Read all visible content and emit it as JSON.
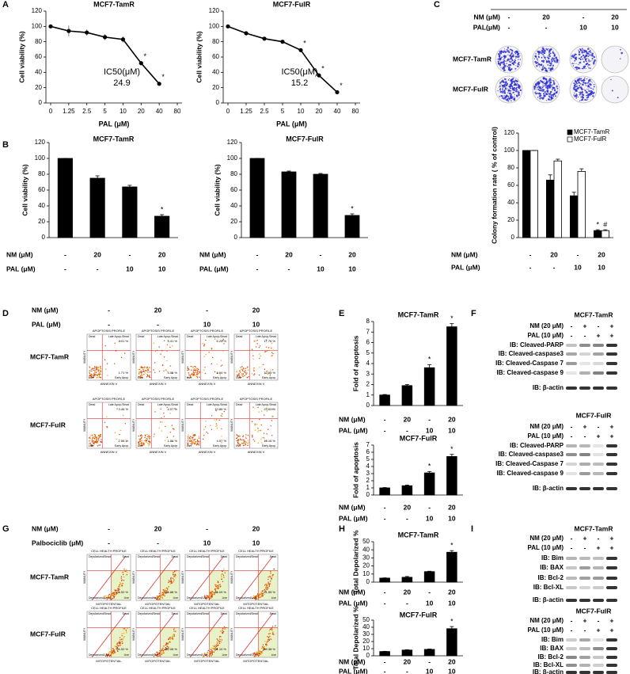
{
  "panels": [
    "A",
    "B",
    "C",
    "D",
    "E",
    "F",
    "G",
    "H",
    "I"
  ],
  "chart_data": [
    {
      "type": "line",
      "title": "MCF7-TamR",
      "xlabel": "PAL (μM)",
      "ylabel": "Cell viability (%)",
      "categories": [
        "0",
        "1.25",
        "2.5",
        "5",
        "10",
        "20",
        "40",
        "80"
      ],
      "values": [
        100,
        94,
        92,
        86,
        83,
        52,
        25,
        null
      ],
      "errors": [
        0,
        7,
        4,
        4,
        4,
        2,
        1,
        null
      ],
      "significance": [
        null,
        null,
        null,
        null,
        null,
        "*",
        "*",
        null
      ],
      "annotations": [
        "IC50(μM)",
        "24.9"
      ],
      "ylim": [
        0,
        120
      ],
      "yticks": [
        0,
        20,
        40,
        60,
        80,
        100,
        120
      ],
      "color": "#000000"
    },
    {
      "type": "line",
      "title": "MCF7-FulR",
      "xlabel": "PAL (μM)",
      "ylabel": "Cell viability (%)",
      "categories": [
        "0",
        "1.25",
        "2.5",
        "5",
        "10",
        "20",
        "40",
        "80"
      ],
      "values": [
        100,
        91,
        84,
        80,
        69,
        36,
        14,
        null
      ],
      "errors": [
        0,
        2,
        2,
        1,
        2,
        1,
        1,
        null
      ],
      "significance": [
        null,
        null,
        null,
        null,
        "*",
        "*",
        "*",
        null
      ],
      "annotations": [
        "IC50(μM)",
        "15.2"
      ],
      "ylim": [
        0,
        120
      ],
      "yticks": [
        0,
        20,
        40,
        60,
        80,
        100,
        120
      ],
      "color": "#000000"
    },
    {
      "type": "bar",
      "title": "MCF7-TamR",
      "ylabel": "Cell viability (%)",
      "values": [
        100,
        75,
        64,
        27
      ],
      "errors": [
        0,
        3,
        2,
        2
      ],
      "significance": [
        null,
        null,
        null,
        "*"
      ],
      "color": "#000000",
      "ylim": [
        0,
        120
      ],
      "yticks": [
        0,
        20,
        40,
        60,
        80,
        100,
        120
      ],
      "treatments": [
        {
          "label": "NM (μM)",
          "values": [
            "-",
            "20",
            "-",
            "20"
          ]
        },
        {
          "label": "PAL (μM)",
          "values": [
            "-",
            "-",
            "10",
            "10"
          ]
        }
      ]
    },
    {
      "type": "bar",
      "title": "MCF7-FulR",
      "ylabel": "Cell viability (%)",
      "values": [
        100,
        83,
        80,
        28
      ],
      "errors": [
        0,
        1,
        1,
        2
      ],
      "significance": [
        null,
        null,
        null,
        "*"
      ],
      "color": "#000000",
      "ylim": [
        0,
        120
      ],
      "yticks": [
        0,
        20,
        40,
        60,
        80,
        100,
        120
      ],
      "treatments": [
        {
          "label": "NM (μM)",
          "values": [
            "-",
            "20",
            "-",
            "20"
          ]
        },
        {
          "label": "PAL (μM)",
          "values": [
            "-",
            "-",
            "10",
            "10"
          ]
        }
      ]
    },
    {
      "type": "bar",
      "ylabel": "Colony formation rate ( % of control)",
      "series": [
        {
          "name": "MCF7-TamR",
          "color": "#000000",
          "values": [
            100,
            66,
            48,
            8
          ],
          "errors": [
            0,
            6,
            4,
            1
          ],
          "significance": [
            null,
            null,
            null,
            "*"
          ]
        },
        {
          "name": "MCF7-FulR",
          "color": "#ffffff",
          "values": [
            100,
            88,
            76,
            8
          ],
          "errors": [
            0,
            2,
            3,
            1
          ],
          "significance": [
            null,
            null,
            null,
            "#"
          ]
        }
      ],
      "legend": "upper right",
      "ylim": [
        0,
        120
      ],
      "yticks": [
        0,
        20,
        40,
        60,
        80,
        100,
        120
      ],
      "treatments": [
        {
          "label": "NM (μM)",
          "values": [
            "-",
            "20",
            "-",
            "20"
          ]
        },
        {
          "label": "PAL (μM)",
          "values": [
            "-",
            "-",
            "10",
            "10"
          ]
        }
      ]
    },
    {
      "type": "bar",
      "title": "MCF7-TamR",
      "ylabel": "Fold of apoptosis",
      "values": [
        1,
        1.9,
        3.6,
        7.5
      ],
      "errors": [
        0.05,
        0.1,
        0.3,
        0.3
      ],
      "significance": [
        null,
        null,
        "*",
        "*"
      ],
      "color": "#000000",
      "ylim": [
        0,
        8
      ],
      "yticks": [
        0,
        1,
        2,
        3,
        4,
        5,
        6,
        7,
        8
      ],
      "treatments": [
        {
          "label": "NM (μM)",
          "values": [
            "-",
            "20",
            "-",
            "20"
          ]
        },
        {
          "label": "PAL (μM)",
          "values": [
            "-",
            "-",
            "10",
            "10"
          ]
        }
      ]
    },
    {
      "type": "bar",
      "title": "MCF7-FulR",
      "ylabel": "Fold of apoptosis",
      "values": [
        1,
        1.3,
        3.1,
        5.4
      ],
      "errors": [
        0.05,
        0.1,
        0.2,
        0.3
      ],
      "significance": [
        null,
        null,
        "*",
        "*"
      ],
      "color": "#000000",
      "ylim": [
        0,
        7
      ],
      "yticks": [
        0,
        1,
        2,
        3,
        4,
        5,
        6,
        7
      ],
      "treatments": [
        {
          "label": "NM (μM)",
          "values": [
            "-",
            "20",
            "-",
            "20"
          ]
        },
        {
          "label": "PAL (μM)",
          "values": [
            "-",
            "-",
            "10",
            "10"
          ]
        }
      ]
    },
    {
      "type": "bar",
      "title": "MCF7-TamR",
      "ylabel": "Total Depolarized %",
      "values": [
        5,
        6,
        13,
        37
      ],
      "errors": [
        0.3,
        1,
        0.5,
        2
      ],
      "significance": [
        null,
        null,
        null,
        "*"
      ],
      "color": "#000000",
      "ylim": [
        0,
        50
      ],
      "yticks": [
        0,
        10,
        20,
        30,
        40,
        50
      ],
      "treatments": [
        {
          "label": "NM (μM)",
          "values": [
            "-",
            "20",
            "-",
            "20"
          ]
        },
        {
          "label": "PAL (μM)",
          "values": [
            "-",
            "-",
            "10",
            "10"
          ]
        }
      ]
    },
    {
      "type": "bar",
      "title": "MCF7-FulR",
      "ylabel": "Total Depolarized %",
      "values": [
        6,
        8,
        9,
        38
      ],
      "errors": [
        0.3,
        0.5,
        0.5,
        3
      ],
      "significance": [
        null,
        null,
        null,
        "*"
      ],
      "color": "#000000",
      "ylim": [
        0,
        50
      ],
      "yticks": [
        0,
        10,
        20,
        30,
        40,
        50
      ],
      "treatments": [
        {
          "label": "NM (μM)",
          "values": [
            "-",
            "20",
            "-",
            "20"
          ]
        },
        {
          "label": "PAL (μM)",
          "values": [
            "-",
            "-",
            "10",
            "10"
          ]
        }
      ]
    }
  ],
  "colony": {
    "treatments": [
      {
        "label": "NM (μM)",
        "values": [
          "-",
          "20",
          "-",
          "20"
        ]
      },
      {
        "label": "PAL(μM)",
        "values": [
          "-",
          "-",
          "10",
          "10"
        ]
      }
    ],
    "rows": [
      "MCF7-TamR",
      "MCF7-FulR"
    ]
  },
  "flow_apoptosis": {
    "treatments": [
      {
        "label": "NM (μM)",
        "values": [
          "-",
          "20",
          "-",
          "20"
        ]
      },
      {
        "label": "PAL (μM)",
        "values": [
          "-",
          "-",
          "10",
          "10"
        ]
      }
    ],
    "plot_title": "APOPTOSIS PROFILE",
    "x_label": "ANNEXIN V",
    "y_label": "VIABILITY",
    "quadrants": [
      "Dead",
      "Late Apop./Dead",
      "Live",
      "Early Apop."
    ],
    "rows": [
      {
        "name": "MCF7-TamR",
        "late": [
          "2.01 %",
          "4.41 %",
          "6.25 %",
          "17.76 %"
        ],
        "early": [
          "1.71 %",
          "4.05 %",
          "8.84 %",
          "10.85 %"
        ]
      },
      {
        "name": "MCF7-FulR",
        "late": [
          "3.46 %",
          "4.07 %",
          "10.86 %",
          "23.63 %"
        ],
        "early": [
          "2.56 %",
          "1.86 %",
          "4.57 %",
          "10.16 %"
        ]
      }
    ]
  },
  "flow_mito": {
    "treatments": [
      {
        "label": "NM (μM)",
        "values": [
          "-",
          "20",
          "-",
          "20"
        ]
      },
      {
        "label": "Palbociclib (μM)",
        "values": [
          "-",
          "-",
          "10",
          "10"
        ]
      }
    ],
    "plot_title": "CELL HEALTH PROFILE",
    "x_label": "MITOPOTENTIAL",
    "y_label": "VIABILITY",
    "quadrants": [
      "Depolarized/Dead",
      "Dead",
      "Depolarized/Live",
      "Live"
    ],
    "rows": [
      {
        "name": "MCF7-TamR",
        "live": [
          "94.92 %",
          "94.88 %",
          "86.09 %",
          "61.55 %"
        ]
      },
      {
        "name": "MCF7-FulR",
        "live": [
          "94.92 %",
          "92.06 %",
          "91.10 %",
          "59.38 %"
        ]
      }
    ]
  },
  "blots_apoptosis": {
    "groups": [
      {
        "title": "MCF7-TamR",
        "treatments": [
          {
            "label": "NM (20 μM)",
            "values": [
              "-",
              "+",
              "-",
              "+"
            ]
          },
          {
            "label": "PAL (10 μM)",
            "values": [
              "-",
              "-",
              "+",
              "+"
            ]
          }
        ],
        "rows": [
          "IB: Cleaved-PARP",
          "IB: Cleaved-caspase3",
          "IB: Cleaved-Caspase 7",
          "IB: Cleaved-caspase 9",
          "IB: β-actin"
        ]
      },
      {
        "title": "MCF7-FulR",
        "treatments": [
          {
            "label": "NM (20 μM)",
            "values": [
              "-",
              "+",
              "-",
              "+"
            ]
          },
          {
            "label": "PAL (10 μM)",
            "values": [
              "-",
              "-",
              "+",
              "+"
            ]
          }
        ],
        "rows": [
          "IB: Cleaved-PARP",
          "IB: Cleaved-caspase3",
          "IB: Cleaved-Caspase 7",
          "IB: Cleaved-caspase 9",
          "IB: β-actin"
        ]
      }
    ]
  },
  "blots_bcl2": {
    "groups": [
      {
        "title": "MCF7-TamR",
        "treatments": [
          {
            "label": "NM (20 μM)",
            "values": [
              "-",
              "+",
              "-",
              "+"
            ]
          },
          {
            "label": "PAL (10 μM)",
            "values": [
              "-",
              "-",
              "+",
              "+"
            ]
          }
        ],
        "rows": [
          "IB: Bim",
          "IB: BAX",
          "IB: Bcl-2",
          "IB: Bcl-XL",
          "IB: β-actin"
        ]
      },
      {
        "title": "MCF7-FulR",
        "treatments": [
          {
            "label": "NM (20 μM)",
            "values": [
              "-",
              "+",
              "-",
              "+"
            ]
          },
          {
            "label": "PAL (10 μM)",
            "values": [
              "-",
              "-",
              "+",
              "+"
            ]
          }
        ],
        "rows": [
          "IB: Bim",
          "IB: BAX",
          "IB: Bcl-2",
          "IB: Bcl-XL",
          "IB: β-actin"
        ]
      }
    ]
  }
}
